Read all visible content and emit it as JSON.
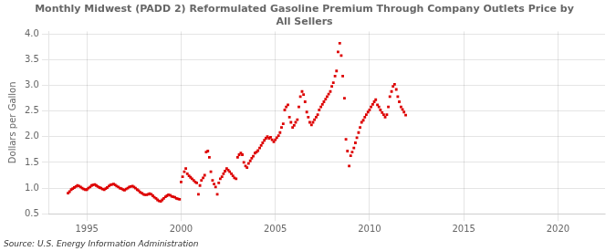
{
  "chart_data": {
    "type": "scatter",
    "title": "Monthly Midwest (PADD 2) Reformulated Gasoline Premium Through Company Outlets Price by\nAll Sellers",
    "ylabel": "Dollars per Gallon",
    "annotations": [
      "Source: U.S. Energy Information Administration"
    ],
    "color": "#dd0000",
    "marker": "square",
    "grid": true,
    "xlim": [
      1993.0,
      2022.5
    ],
    "ylim": [
      0.5,
      4.05
    ],
    "xticks": [
      1995,
      2000,
      2005,
      2010,
      2015,
      2020
    ],
    "yticks": [
      0.5,
      {
        "value": 1.0,
        "label": "1.0"
      },
      1.5,
      {
        "value": 2.0,
        "label": "2.0"
      },
      2.5,
      {
        "value": 3.0,
        "label": "3.0"
      },
      3.5,
      {
        "value": 4.0,
        "label": "4.0"
      }
    ],
    "x": [
      1994.0,
      1994.08,
      1994.17,
      1994.25,
      1994.33,
      1994.42,
      1994.5,
      1994.58,
      1994.67,
      1994.75,
      1994.83,
      1994.92,
      1995.0,
      1995.08,
      1995.17,
      1995.25,
      1995.33,
      1995.42,
      1995.5,
      1995.58,
      1995.67,
      1995.75,
      1995.83,
      1995.92,
      1996.0,
      1996.08,
      1996.17,
      1996.25,
      1996.33,
      1996.42,
      1996.5,
      1996.58,
      1996.67,
      1996.75,
      1996.83,
      1996.92,
      1997.0,
      1997.08,
      1997.17,
      1997.25,
      1997.33,
      1997.42,
      1997.5,
      1997.58,
      1997.67,
      1997.75,
      1997.83,
      1997.92,
      1998.0,
      1998.08,
      1998.17,
      1998.25,
      1998.33,
      1998.42,
      1998.5,
      1998.58,
      1998.67,
      1998.75,
      1998.83,
      1998.92,
      1999.0,
      1999.08,
      1999.17,
      1999.25,
      1999.33,
      1999.42,
      1999.5,
      1999.58,
      1999.67,
      1999.75,
      1999.83,
      1999.92,
      2000.0,
      2000.08,
      2000.17,
      2000.25,
      2000.33,
      2000.42,
      2000.5,
      2000.58,
      2000.67,
      2000.75,
      2000.83,
      2000.92,
      2001.0,
      2001.08,
      2001.17,
      2001.25,
      2001.33,
      2001.42,
      2001.5,
      2001.58,
      2001.67,
      2001.75,
      2001.83,
      2001.92,
      2002.0,
      2002.08,
      2002.17,
      2002.25,
      2002.33,
      2002.42,
      2002.5,
      2002.58,
      2002.67,
      2002.75,
      2002.83,
      2002.92,
      2003.0,
      2003.08,
      2003.17,
      2003.25,
      2003.33,
      2003.42,
      2003.5,
      2003.58,
      2003.67,
      2003.75,
      2003.83,
      2003.92,
      2004.0,
      2004.08,
      2004.17,
      2004.25,
      2004.33,
      2004.42,
      2004.5,
      2004.58,
      2004.67,
      2004.75,
      2004.83,
      2004.92,
      2005.0,
      2005.08,
      2005.17,
      2005.25,
      2005.33,
      2005.42,
      2005.5,
      2005.58,
      2005.67,
      2005.75,
      2005.83,
      2005.92,
      2006.0,
      2006.08,
      2006.17,
      2006.25,
      2006.33,
      2006.42,
      2006.5,
      2006.58,
      2006.67,
      2006.75,
      2006.83,
      2006.92,
      2007.0,
      2007.08,
      2007.17,
      2007.25,
      2007.33,
      2007.42,
      2007.5,
      2007.58,
      2007.67,
      2007.75,
      2007.83,
      2007.92,
      2008.0,
      2008.08,
      2008.17,
      2008.25,
      2008.33,
      2008.42,
      2008.5,
      2008.58,
      2008.67,
      2008.75,
      2008.83,
      2008.92,
      2009.0,
      2009.08,
      2009.17,
      2009.25,
      2009.33,
      2009.42,
      2009.5,
      2009.58,
      2009.67,
      2009.75,
      2009.83,
      2009.92,
      2010.0,
      2010.08,
      2010.17,
      2010.25,
      2010.33,
      2010.42,
      2010.5,
      2010.58,
      2010.67,
      2010.75,
      2010.83,
      2010.92,
      2011.0,
      2011.08,
      2011.17,
      2011.25,
      2011.33,
      2011.42,
      2011.5,
      2011.58,
      2011.67,
      2011.75,
      2011.83,
      2011.92
    ],
    "values": [
      0.9,
      0.93,
      0.97,
      0.99,
      1.01,
      1.03,
      1.05,
      1.04,
      1.02,
      1.0,
      0.98,
      0.97,
      0.97,
      1.0,
      1.02,
      1.05,
      1.06,
      1.07,
      1.05,
      1.03,
      1.01,
      1.0,
      0.98,
      0.97,
      0.99,
      1.01,
      1.04,
      1.06,
      1.07,
      1.08,
      1.06,
      1.04,
      1.02,
      1.0,
      0.99,
      0.97,
      0.96,
      0.98,
      1.0,
      1.02,
      1.03,
      1.04,
      1.02,
      1.0,
      0.97,
      0.95,
      0.92,
      0.9,
      0.88,
      0.87,
      0.87,
      0.88,
      0.89,
      0.88,
      0.85,
      0.82,
      0.8,
      0.77,
      0.75,
      0.74,
      0.77,
      0.8,
      0.83,
      0.85,
      0.87,
      0.86,
      0.84,
      0.83,
      0.82,
      0.8,
      0.79,
      0.78,
      1.12,
      1.22,
      1.32,
      1.38,
      1.28,
      1.24,
      1.21,
      1.18,
      1.15,
      1.12,
      1.1,
      0.88,
      1.05,
      1.15,
      1.2,
      1.25,
      1.7,
      1.72,
      1.6,
      1.32,
      1.15,
      1.08,
      1.02,
      0.88,
      1.1,
      1.18,
      1.22,
      1.28,
      1.33,
      1.38,
      1.35,
      1.32,
      1.28,
      1.24,
      1.2,
      1.18,
      1.6,
      1.65,
      1.68,
      1.65,
      1.5,
      1.43,
      1.4,
      1.48,
      1.53,
      1.58,
      1.62,
      1.68,
      1.7,
      1.73,
      1.78,
      1.83,
      1.88,
      1.93,
      1.97,
      2.0,
      1.97,
      1.99,
      1.94,
      1.9,
      1.94,
      1.98,
      2.02,
      2.08,
      2.18,
      2.25,
      2.52,
      2.58,
      2.62,
      2.38,
      2.28,
      2.18,
      2.22,
      2.28,
      2.33,
      2.58,
      2.78,
      2.88,
      2.82,
      2.68,
      2.48,
      2.38,
      2.28,
      2.23,
      2.28,
      2.33,
      2.38,
      2.43,
      2.52,
      2.58,
      2.63,
      2.68,
      2.73,
      2.78,
      2.83,
      2.88,
      2.98,
      3.05,
      3.18,
      3.28,
      3.65,
      3.82,
      3.58,
      3.18,
      2.75,
      1.95,
      1.72,
      1.43,
      1.63,
      1.7,
      1.78,
      1.88,
      1.98,
      2.08,
      2.18,
      2.28,
      2.32,
      2.38,
      2.43,
      2.48,
      2.52,
      2.58,
      2.63,
      2.68,
      2.72,
      2.62,
      2.58,
      2.52,
      2.47,
      2.43,
      2.38,
      2.43,
      2.58,
      2.78,
      2.88,
      2.98,
      3.02,
      2.92,
      2.78,
      2.68,
      2.58,
      2.53,
      2.48,
      2.42
    ]
  }
}
